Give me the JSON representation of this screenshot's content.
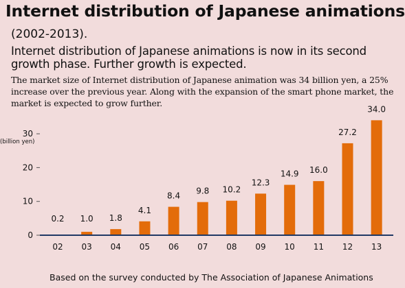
{
  "header": {
    "title": "Internet distribution of Japanese animations",
    "period": "(2002-2013).",
    "subtitle": "Internet distribution of Japanese animations is now in its second growth phase. Further growth is expected.",
    "description": "The market size of Internet distribution of Japanese animation was 34 billion yen, a 25% increase over the previous year.  Along with the expansion of the smart phone market, the market is expected to grow further."
  },
  "footer": {
    "source": "Based on the survey conducted by The Association of Japanese Animations"
  },
  "chart_data": {
    "type": "bar",
    "title": "Internet distribution of Japanese animations",
    "xlabel": "",
    "ylabel": "",
    "y_unit": "(billion yen)",
    "categories": [
      "02",
      "03",
      "04",
      "05",
      "06",
      "07",
      "08",
      "09",
      "10",
      "11",
      "12",
      "13"
    ],
    "values": [
      0.2,
      1.0,
      1.8,
      4.1,
      8.4,
      9.8,
      10.2,
      12.3,
      14.9,
      16.0,
      27.2,
      34.0
    ],
    "data_labels": [
      "0.2",
      "1.0",
      "1.8",
      "4.1",
      "8.4",
      "9.8",
      "10.2",
      "12.3",
      "14.9",
      "16.0",
      "27.2",
      "34.0"
    ],
    "y_ticks": [
      0,
      10,
      20,
      30
    ],
    "ylim": [
      0,
      34
    ],
    "grid": false,
    "legend": "none",
    "colors": {
      "bar": "#e36c0a",
      "axis": "#1f3864",
      "background": "#f2dcdc"
    }
  }
}
